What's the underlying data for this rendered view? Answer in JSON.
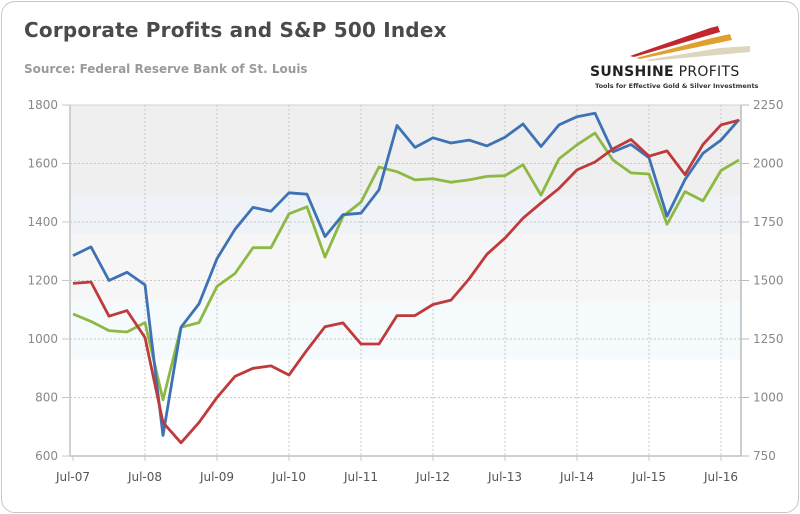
{
  "header": {
    "title": "Corporate Profits and S&P 500 Index",
    "subtitle": "Source: Federal Reserve Bank of St. Louis"
  },
  "logo": {
    "name_bold": "SUNSHINE",
    "name_light": " PROFITS",
    "tagline": "Tools for Effective Gold & Silver Investments",
    "colors": [
      "#c0282d",
      "#e0a030",
      "#d8d0b0"
    ]
  },
  "chart_data": {
    "type": "line",
    "title": "Corporate Profits and S&P 500 Index",
    "subtitle": "Source: Federal Reserve Bank of St. Louis",
    "xlabel": "",
    "ylabel_left": "",
    "ylabel_right": "",
    "x": [
      "Jul-07",
      "Oct-07",
      "Jan-08",
      "Apr-08",
      "Jul-08",
      "Oct-08",
      "Jan-09",
      "Apr-09",
      "Jul-09",
      "Oct-09",
      "Jan-10",
      "Apr-10",
      "Jul-10",
      "Oct-10",
      "Jan-11",
      "Apr-11",
      "Jul-11",
      "Oct-11",
      "Jan-12",
      "Apr-12",
      "Jul-12",
      "Oct-12",
      "Jan-13",
      "Apr-13",
      "Jul-13",
      "Oct-13",
      "Jan-14",
      "Apr-14",
      "Jul-14",
      "Oct-14",
      "Jan-15",
      "Apr-15",
      "Jul-15",
      "Oct-15",
      "Jan-16",
      "Apr-16",
      "Jul-16",
      "Oct-16"
    ],
    "x_tick_labels": [
      "Jul-07",
      "Jul-08",
      "Jul-09",
      "Jul-10",
      "Jul-11",
      "Jul-12",
      "Jul-13",
      "Jul-14",
      "Jul-15",
      "Jul-16"
    ],
    "left_axis": {
      "ylim": [
        600,
        1800
      ],
      "ticks": [
        600,
        800,
        1000,
        1200,
        1400,
        1600,
        1800
      ]
    },
    "right_axis": {
      "ylim": [
        750,
        2250
      ],
      "ticks": [
        750,
        1000,
        1250,
        1500,
        1750,
        2000,
        2250
      ]
    },
    "grid": true,
    "legend": "none",
    "series": [
      {
        "name": "Series (blue, left axis)",
        "color": "#3d72b4",
        "axis": "left",
        "values": [
          1285,
          1315,
          1200,
          1228,
          1185,
          670,
          1040,
          1120,
          1275,
          1375,
          1450,
          1437,
          1500,
          1495,
          1350,
          1425,
          1430,
          1510,
          1730,
          1655,
          1688,
          1670,
          1680,
          1660,
          1690,
          1735,
          1658,
          1732,
          1760,
          1772,
          1640,
          1665,
          1620,
          1420,
          1545,
          1635,
          1680,
          1750
        ]
      },
      {
        "name": "Series (red, left axis)",
        "color": "#c0393b",
        "axis": "left",
        "values": [
          1190,
          1195,
          1078,
          1097,
          1005,
          715,
          645,
          715,
          800,
          872,
          900,
          908,
          877,
          962,
          1042,
          1055,
          983,
          983,
          1080,
          1080,
          1118,
          1133,
          1205,
          1290,
          1345,
          1413,
          1465,
          1515,
          1578,
          1605,
          1650,
          1682,
          1625,
          1643,
          1562,
          1665,
          1732,
          1748
        ]
      },
      {
        "name": "Series (green, right axis)",
        "color": "#8db843",
        "axis": "right",
        "values": [
          1357,
          1325,
          1286,
          1280,
          1320,
          990,
          1300,
          1320,
          1475,
          1530,
          1640,
          1640,
          1785,
          1815,
          1600,
          1775,
          1835,
          1985,
          1965,
          1930,
          1935,
          1920,
          1930,
          1945,
          1948,
          1995,
          1865,
          2020,
          2080,
          2130,
          2015,
          1960,
          1955,
          1740,
          1880,
          1840,
          1970,
          2015
        ]
      }
    ]
  }
}
